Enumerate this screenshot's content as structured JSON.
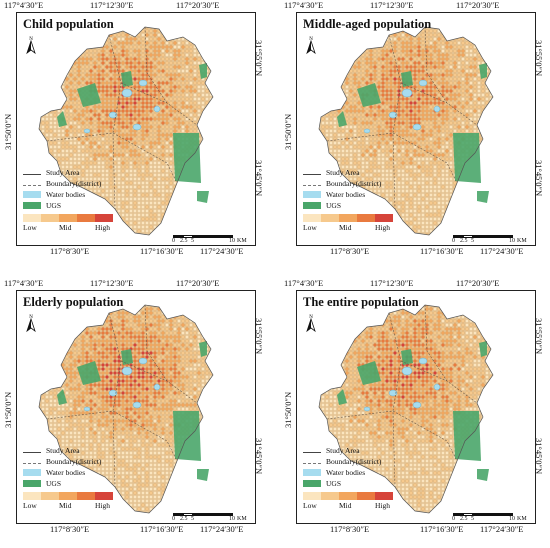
{
  "colors": {
    "ramp": [
      "#fbe5bf",
      "#f6c98d",
      "#f2a65e",
      "#e97a3f",
      "#d6443a"
    ],
    "water": "#a6dcef",
    "ugs": "#4aa66a",
    "land": "#e8c89a",
    "hex": "#c99a5c"
  },
  "panels": [
    {
      "title": "Child population",
      "top_ticks": [
        "117°4′30″E",
        "117°12′30″E",
        "117°20′30″E"
      ],
      "bottom_ticks": [
        "117°8′30″E",
        "117°16′30″E",
        "117°24′30″E"
      ],
      "left_tick": "31°50′0″N",
      "right_ticks": [
        "31°55′0″N",
        "31°45′0″N"
      ],
      "intensity": 0.55
    },
    {
      "title": "Middle-aged population",
      "top_ticks": [
        "117°4′30″E",
        "117°12′30″E",
        "117°20′30″E"
      ],
      "bottom_ticks": [
        "117°8′30″E",
        "117°16′30″E",
        "117°24′30″E"
      ],
      "left_tick": "31°50′0″N",
      "right_ticks": [
        "31°55′0″N",
        "31°45′0″N"
      ],
      "intensity": 0.55
    },
    {
      "title": "Elderly population",
      "top_ticks": [
        "117°4′30″E",
        "117°12′30″E",
        "117°20′30″E"
      ],
      "bottom_ticks": [
        "117°8′30″E",
        "117°16′30″E",
        "117°24′30″E"
      ],
      "left_tick": "31°50′0″N",
      "right_ticks": [
        "31°55′0″N",
        "31°45′0″N"
      ],
      "intensity": 0.65
    },
    {
      "title": "The entire population",
      "top_ticks": [
        "117°4′30″E",
        "117°12′30″E",
        "117°20′30″E"
      ],
      "bottom_ticks": [
        "117°8′30″E",
        "117°16′30″E",
        "117°24′30″E"
      ],
      "left_tick": "31°50′0″N",
      "right_ticks": [
        "31°55′0″N",
        "31°45′0″N"
      ],
      "intensity": 0.6
    }
  ],
  "legend": {
    "study_area": "Study Area",
    "boundary": "Boundary(district)",
    "water": "Water bodies",
    "ugs": "UGS",
    "low": "Low",
    "mid": "Mid",
    "high": "High"
  },
  "scale": {
    "labels": [
      "0",
      "2.5",
      "5",
      "10"
    ],
    "unit": "KM"
  },
  "north_label": "N"
}
